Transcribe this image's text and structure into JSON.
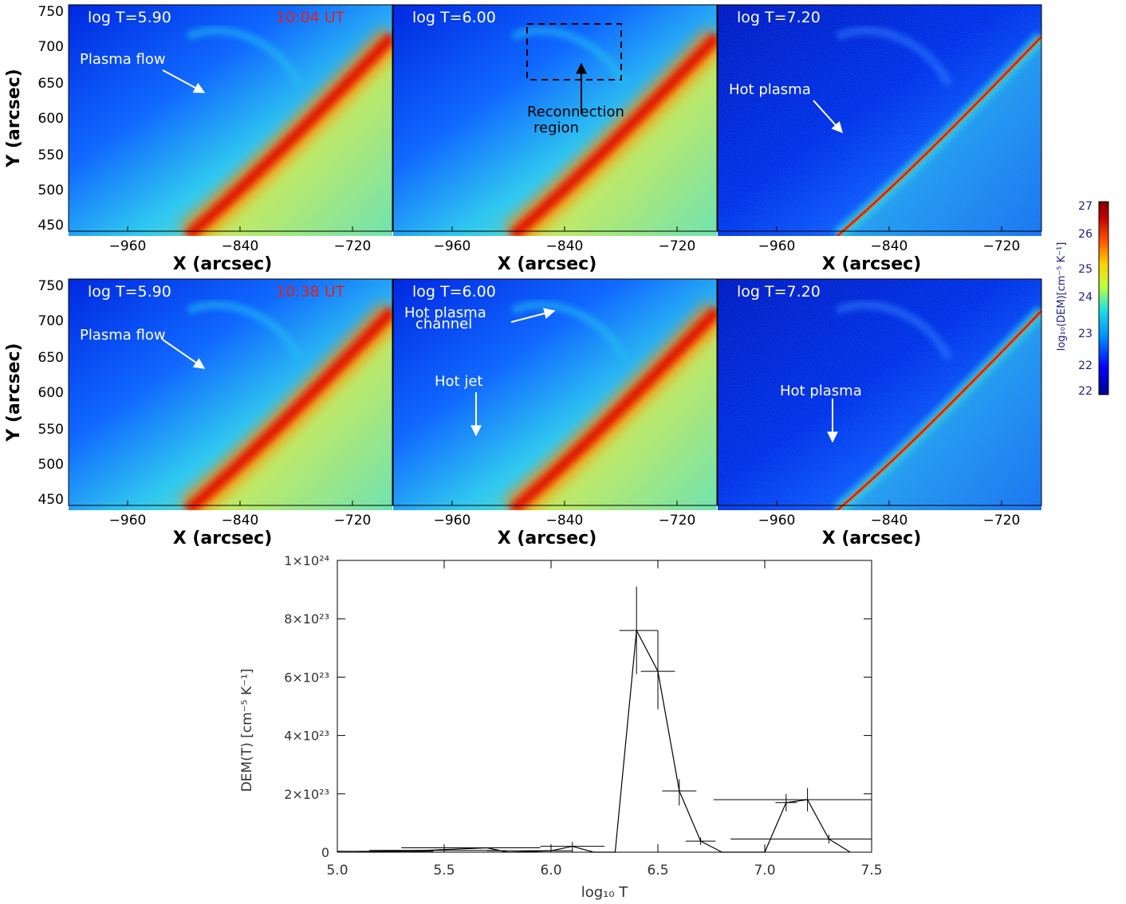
{
  "maps": {
    "x_axis_label": "X (arcsec)",
    "y_axis_label": "Y (arcsec)",
    "x_ticks": [
      "−960",
      "−840",
      "−720"
    ],
    "y_ticks": [
      "750",
      "700",
      "650",
      "600",
      "550",
      "500",
      "450"
    ],
    "rows": [
      {
        "time": "10:04 UT",
        "panels": [
          {
            "temp_label": "log T=5.90",
            "annotations": [
              {
                "text": "Plasma flow"
              }
            ]
          },
          {
            "temp_label": "log T=6.00",
            "annotations": [
              {
                "text_lines": [
                  "Reconnection",
                  "region"
                ]
              }
            ]
          },
          {
            "temp_label": "log T=7.20",
            "annotations": [
              {
                "text": "Hot plasma"
              }
            ]
          }
        ]
      },
      {
        "time": "10:38 UT",
        "panels": [
          {
            "temp_label": "log T=5.90",
            "annotations": [
              {
                "text": "Plasma flow"
              }
            ]
          },
          {
            "temp_label": "log T=6.00",
            "annotations": [
              {
                "text_lines": [
                  "Hot plasma",
                  "channel"
                ]
              },
              {
                "text": "Hot jet"
              }
            ]
          },
          {
            "temp_label": "log T=7.20",
            "annotations": [
              {
                "text": "Hot plasma"
              }
            ]
          }
        ]
      }
    ]
  },
  "colorbar": {
    "label": "log₁₀(DEM)[cm⁻⁵ K⁻¹]",
    "ticks": [
      "27",
      "26",
      "25",
      "24",
      "23",
      "22",
      "22"
    ],
    "colors": [
      "#00008f",
      "#0000ff",
      "#0090ff",
      "#20e0e0",
      "#c0ff40",
      "#ffd000",
      "#ff5000",
      "#c00000",
      "#800000"
    ]
  },
  "chart_data": {
    "type": "line",
    "title": "",
    "xlabel": "log₁₀ T",
    "ylabel": "DEM(T)  [cm⁻⁵ K⁻¹]",
    "xlim": [
      5.0,
      7.5
    ],
    "ylim": [
      0,
      1e+24
    ],
    "x_ticks": [
      5.0,
      5.5,
      6.0,
      6.5,
      7.0,
      7.5
    ],
    "x_tick_labels": [
      "5.0",
      "5.5",
      "6.0",
      "6.5",
      "7.0",
      "7.5"
    ],
    "y_ticks": [
      0,
      2e+23,
      4e+23,
      6e+23,
      8e+23,
      1e+24
    ],
    "y_tick_labels": [
      "0",
      "2×10²³",
      "4×10²³",
      "6×10²³",
      "8×10²³",
      "1×10²⁴"
    ],
    "points": [
      {
        "x": 5.1,
        "y": 0.0,
        "xlo": 5.05,
        "xhi": 5.3,
        "ylo": 0.0,
        "yhi": 0.0
      },
      {
        "x": 5.2,
        "y": 3e+21,
        "xlo": 5.0,
        "xhi": 5.45,
        "ylo": 3e+21,
        "yhi": 3e+21
      },
      {
        "x": 5.4,
        "y": 6e+21,
        "xlo": 5.15,
        "xhi": 5.75,
        "ylo": 6e+21,
        "yhi": 6e+21
      },
      {
        "x": 5.7,
        "y": 1.5e+22,
        "xlo": 5.3,
        "xhi": 5.95,
        "ylo": 1.5e+22,
        "yhi": 1.5e+22
      },
      {
        "x": 5.8,
        "y": 0.0,
        "xlo": 5.5,
        "xhi": 6.0,
        "ylo": 0.0,
        "yhi": 0.0
      },
      {
        "x": 6.0,
        "y": 5e+21,
        "xlo": 5.7,
        "xhi": 6.1,
        "ylo": 5e+21,
        "yhi": 5e+21
      },
      {
        "x": 6.1,
        "y": 2e+22,
        "xlo": 5.95,
        "xhi": 6.25,
        "ylo": 0.0,
        "yhi": 3.5e+22
      },
      {
        "x": 6.2,
        "y": 0.0,
        "xlo": 6.1,
        "xhi": 6.3,
        "ylo": 0.0,
        "yhi": 0.0
      },
      {
        "x": 6.3,
        "y": 0.0,
        "xlo": 6.25,
        "xhi": 6.35,
        "ylo": 0.0,
        "yhi": 0.0
      },
      {
        "x": 6.4,
        "y": 7.6e+23,
        "xlo": 6.32,
        "xhi": 6.5,
        "ylo": 6.1e+23,
        "yhi": 9.1e+23
      },
      {
        "x": 6.5,
        "y": 6.2e+23,
        "xlo": 6.42,
        "xhi": 6.58,
        "ylo": 4.9e+23,
        "yhi": 7.6e+23
      },
      {
        "x": 6.6,
        "y": 2.1e+23,
        "xlo": 6.52,
        "xhi": 6.68,
        "ylo": 1.6e+23,
        "yhi": 2.5e+23
      },
      {
        "x": 6.7,
        "y": 3.8e+22,
        "xlo": 6.63,
        "xhi": 6.77,
        "ylo": 2.5e+22,
        "yhi": 5e+22
      },
      {
        "x": 6.8,
        "y": 0.0,
        "xlo": 6.74,
        "xhi": 6.86,
        "ylo": 0.0,
        "yhi": 0.0
      },
      {
        "x": 6.9,
        "y": 0.0,
        "xlo": 6.84,
        "xhi": 6.96,
        "ylo": 0.0,
        "yhi": 0.0
      },
      {
        "x": 7.0,
        "y": 0.0,
        "xlo": 6.96,
        "xhi": 7.04,
        "ylo": 0.0,
        "yhi": 0.0
      },
      {
        "x": 7.1,
        "y": 1.7e+23,
        "xlo": 7.05,
        "xhi": 7.15,
        "ylo": 1.4e+23,
        "yhi": 2e+23
      },
      {
        "x": 7.2,
        "y": 1.8e+23,
        "xlo": 6.76,
        "xhi": 7.5,
        "ylo": 1.4e+23,
        "yhi": 2.2e+23
      },
      {
        "x": 7.3,
        "y": 4.5e+22,
        "xlo": 6.84,
        "xhi": 7.5,
        "ylo": 3e+22,
        "yhi": 6e+22
      },
      {
        "x": 7.4,
        "y": 0.0,
        "xlo": 7.35,
        "xhi": 7.45,
        "ylo": 0.0,
        "yhi": 0.0
      }
    ]
  }
}
